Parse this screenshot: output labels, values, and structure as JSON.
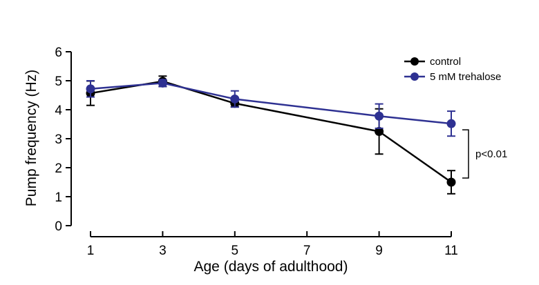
{
  "chart_data": {
    "type": "line",
    "xlabel": "Age (days of adulthood)",
    "ylabel": "Pump frequency (Hz)",
    "xlim": [
      1,
      11
    ],
    "ylim": [
      0,
      6
    ],
    "xticks": [
      "1",
      "3",
      "5",
      "7",
      "9",
      "11"
    ],
    "yticks": [
      "0",
      "1",
      "2",
      "3",
      "4",
      "5",
      "6"
    ],
    "legend_position": "top-right",
    "series": [
      {
        "name": "control",
        "color": "#000000",
        "x": [
          1,
          3,
          5,
          9,
          11
        ],
        "y": [
          4.57,
          4.98,
          4.22,
          3.25,
          1.5
        ],
        "err": [
          0.42,
          0.18,
          0.12,
          0.78,
          0.4
        ]
      },
      {
        "name": "5 mM trehalose",
        "color": "#2e3192",
        "x": [
          1,
          3,
          5,
          9,
          11
        ],
        "y": [
          4.72,
          4.92,
          4.37,
          3.78,
          3.52
        ],
        "err": [
          0.28,
          0.12,
          0.28,
          0.42,
          0.43
        ]
      }
    ],
    "annotation": {
      "text": "p<0.01",
      "x": 11,
      "y_range": [
        1.5,
        3.52
      ]
    }
  }
}
